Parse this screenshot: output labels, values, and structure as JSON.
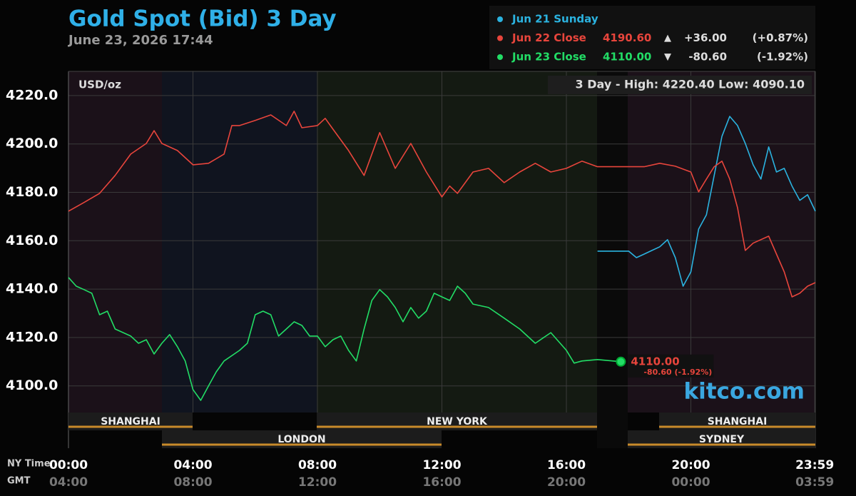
{
  "chart_data": {
    "type": "line",
    "title": "Gold Spot (Bid) 3 Day",
    "subtitle": "June 23, 2026 17:44",
    "unit_label": "USD/oz",
    "range_annotation": "3 Day - High: 4220.40  Low: 4090.10",
    "watermark": "kitco.com",
    "xlabel": "NY Time",
    "x2label": "GMT",
    "xlim": [
      0,
      24
    ],
    "ylim": [
      4089,
      4230
    ],
    "grid": true,
    "yticks": [
      {
        "value": 4100,
        "label": "4100.0"
      },
      {
        "value": 4120,
        "label": "4120.0"
      },
      {
        "value": 4140,
        "label": "4140.0"
      },
      {
        "value": 4160,
        "label": "4160.0"
      },
      {
        "value": 4180,
        "label": "4180.0"
      },
      {
        "value": 4200,
        "label": "4200.0"
      },
      {
        "value": 4220,
        "label": "4220.0"
      }
    ],
    "xticks": [
      {
        "value": 0,
        "label": "00:00"
      },
      {
        "value": 4,
        "label": "04:00"
      },
      {
        "value": 8,
        "label": "08:00"
      },
      {
        "value": 12,
        "label": "12:00"
      },
      {
        "value": 16,
        "label": "16:00"
      },
      {
        "value": 20,
        "label": "20:00"
      },
      {
        "value": 23.98,
        "label": "23:59"
      }
    ],
    "x2ticks": [
      {
        "value": 0,
        "label": "04:00"
      },
      {
        "value": 4,
        "label": "08:00"
      },
      {
        "value": 8,
        "label": "12:00"
      },
      {
        "value": 12,
        "label": "16:00"
      },
      {
        "value": 16,
        "label": "20:00"
      },
      {
        "value": 20,
        "label": "00:00"
      },
      {
        "value": 23.98,
        "label": "03:59"
      }
    ],
    "sessions": [
      "SHANGHAI",
      "LONDON",
      "NEW YORK",
      "SHANGHAI",
      "SYDNEY"
    ],
    "series": [
      {
        "name": "Jun 21 Sunday",
        "color": "#2bb3e0",
        "x": [
          17,
          18,
          18.25,
          18.5,
          18.75,
          19,
          19.25,
          19.5,
          19.75,
          20,
          20.25,
          20.5,
          20.75,
          21,
          21.25,
          21.5,
          21.75,
          22,
          22.25,
          22.5,
          22.75,
          23,
          23.25,
          23.5,
          23.75,
          24
        ],
        "values": [
          4155.7,
          4155.7,
          4153,
          4154.5,
          4156,
          4157.5,
          4160.4,
          4153,
          4141.2,
          4147.1,
          4164.8,
          4170.7,
          4187,
          4203.2,
          4211.4,
          4207.6,
          4200.2,
          4191.4,
          4185.5,
          4198.8,
          4188.4,
          4189.9,
          4182.6,
          4176.7,
          4179,
          4172.2
        ]
      },
      {
        "name": "Jun 22 Close",
        "color": "#e8453c",
        "close": "4190.60",
        "arrow": "▲",
        "change": "+36.00",
        "change_pct": "(+0.87%)",
        "x": [
          0,
          0.5,
          1,
          1.5,
          2,
          2.5,
          2.75,
          3,
          3.5,
          4,
          4.5,
          5,
          5.25,
          5.5,
          6,
          6.5,
          7,
          7.25,
          7.5,
          8,
          8.25,
          8.5,
          9,
          9.5,
          10,
          10.5,
          11,
          11.5,
          12,
          12.25,
          12.5,
          13,
          13.5,
          14,
          14.5,
          15,
          15.5,
          16,
          16.5,
          17,
          18,
          18.5,
          19,
          19.5,
          20,
          20.25,
          20.5,
          20.75,
          21,
          21.25,
          21.5,
          21.75,
          22,
          22.5,
          22.75,
          23,
          23.25,
          23.5,
          23.75,
          24
        ],
        "values": [
          4172.2,
          4175.8,
          4179.6,
          4187,
          4195.8,
          4200.2,
          4205.5,
          4200.2,
          4197.3,
          4191.4,
          4192,
          4195.8,
          4207.6,
          4207.6,
          4209.7,
          4212,
          4207.6,
          4213.5,
          4206.7,
          4207.6,
          4210.6,
          4206.1,
          4197.3,
          4187,
          4204.7,
          4189.9,
          4200.2,
          4188.4,
          4178.1,
          4182.6,
          4179.6,
          4188.4,
          4189.9,
          4184,
          4188.4,
          4192,
          4188.4,
          4189.9,
          4192.9,
          4190.6,
          4190.6,
          4190.6,
          4192,
          4190.8,
          4188.4,
          4180.2,
          4185.5,
          4190.6,
          4192.9,
          4185.5,
          4173.7,
          4156,
          4159,
          4161.9,
          4154.5,
          4147.1,
          4136.8,
          4138.3,
          4141.2,
          4142.7
        ]
      },
      {
        "name": "Jun 23 Close",
        "color": "#22dd66",
        "close": "4110.00",
        "arrow": "▼",
        "change": "-80.60",
        "change_pct": "(-1.92%)",
        "x": [
          0,
          0.25,
          0.5,
          0.75,
          1,
          1.25,
          1.5,
          2,
          2.25,
          2.5,
          2.75,
          3,
          3.25,
          3.5,
          3.75,
          4,
          4.25,
          4.5,
          4.75,
          5,
          5.5,
          5.75,
          6,
          6.25,
          6.5,
          6.75,
          7,
          7.25,
          7.5,
          7.75,
          8,
          8.25,
          8.5,
          8.75,
          9,
          9.25,
          9.5,
          9.75,
          10,
          10.25,
          10.5,
          10.75,
          11,
          11.25,
          11.5,
          11.75,
          12,
          12.25,
          12.5,
          12.75,
          13,
          13.5,
          14,
          14.5,
          15,
          15.5,
          16,
          16.25,
          16.5,
          17,
          17.75
        ],
        "values": [
          4144.8,
          4141.2,
          4139.8,
          4138.3,
          4129.4,
          4130.9,
          4123.5,
          4120.6,
          4117.6,
          4119.1,
          4113.2,
          4117.6,
          4121.2,
          4116.2,
          4110.3,
          4098.5,
          4094,
          4100,
          4105.8,
          4110.3,
          4114.7,
          4117.6,
          4129.4,
          4130.9,
          4129.4,
          4120.6,
          4123.5,
          4126.5,
          4125,
          4120.6,
          4120.6,
          4116.2,
          4119.1,
          4120.6,
          4114.7,
          4110.3,
          4123.5,
          4135.3,
          4139.8,
          4136.8,
          4132.4,
          4126.5,
          4132.4,
          4128,
          4130.9,
          4138.3,
          4136.8,
          4135.3,
          4141.2,
          4138.3,
          4133.8,
          4132.4,
          4128,
          4123.5,
          4117.6,
          4122,
          4114.7,
          4109.4,
          4110.3,
          4110.9,
          4110
        ]
      }
    ],
    "end_label": {
      "value": "4110.00",
      "change": "-80.60 (-1.92%)"
    }
  }
}
